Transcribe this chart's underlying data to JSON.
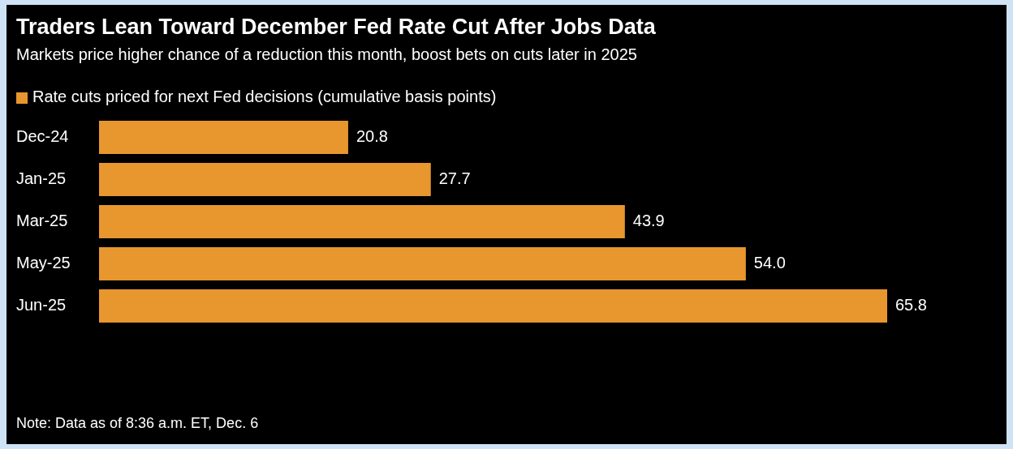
{
  "chart_data": {
    "type": "bar",
    "orientation": "horizontal",
    "title": "Traders Lean Toward December Fed Rate Cut After Jobs Data",
    "subtitle": "Markets price higher chance of a reduction this month, boost bets on cuts later in 2025",
    "categories": [
      "Dec-24",
      "Jan-25",
      "Mar-25",
      "May-25",
      "Jun-25"
    ],
    "series": [
      {
        "name": "Rate cuts priced for next Fed decisions (cumulative basis points)",
        "color": "#e8962e",
        "values": [
          20.8,
          27.7,
          43.9,
          54.0,
          65.8
        ],
        "value_labels": [
          "20.8",
          "27.7",
          "43.9",
          "54.0",
          "65.8"
        ]
      }
    ],
    "legend": "top left",
    "annotations": [
      "Note: Data as of 8:36 a.m. ET, Dec. 6"
    ]
  }
}
